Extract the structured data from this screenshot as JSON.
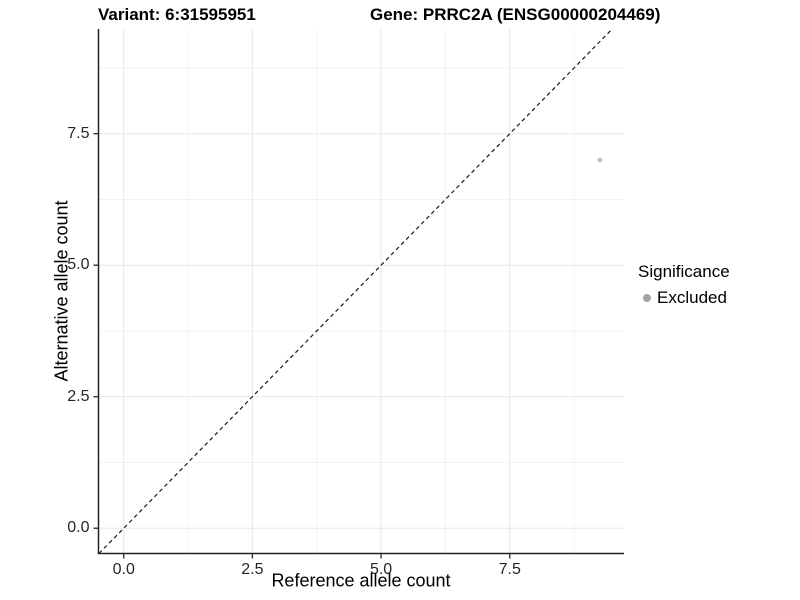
{
  "titles": {
    "variant": "Variant: 6:31595951",
    "gene": "Gene: PRRC2A (ENSG00000204469)"
  },
  "chart_data": {
    "type": "scatter",
    "xlabel": "Reference allele count",
    "ylabel": "Alternative allele count",
    "x_ticks": [
      0.0,
      2.5,
      5.0,
      7.5
    ],
    "x_tick_labels": [
      "0.0",
      "2.5",
      "5.0",
      "7.5"
    ],
    "y_ticks": [
      0.0,
      2.5,
      5.0,
      7.5
    ],
    "y_tick_labels": [
      "0.0",
      "2.5",
      "5.0",
      "7.5"
    ],
    "xlim": [
      -0.49,
      9.72
    ],
    "ylim": [
      -0.48,
      9.49
    ],
    "grid": "major+minor",
    "minor_step": 1.25,
    "points": [
      {
        "x": 9.25,
        "y": 7.0,
        "series": "Excluded"
      }
    ],
    "reference_line": {
      "type": "identity",
      "slope": 1,
      "intercept": 0,
      "style": "dashed"
    },
    "legend": {
      "title": "Significance",
      "position": "right",
      "items": [
        {
          "label": "Excluded",
          "color": "#a4a4a4"
        }
      ]
    }
  },
  "colors": {
    "background": "#ffffff",
    "axis_line": "#222222",
    "tick_mark": "#333333",
    "grid_major": "#e7e7e7",
    "grid_minor": "#f3f3f3",
    "point": "#c1c1c1",
    "legend_dot": "#a4a4a4",
    "reference_line": "#1a1a1a"
  }
}
